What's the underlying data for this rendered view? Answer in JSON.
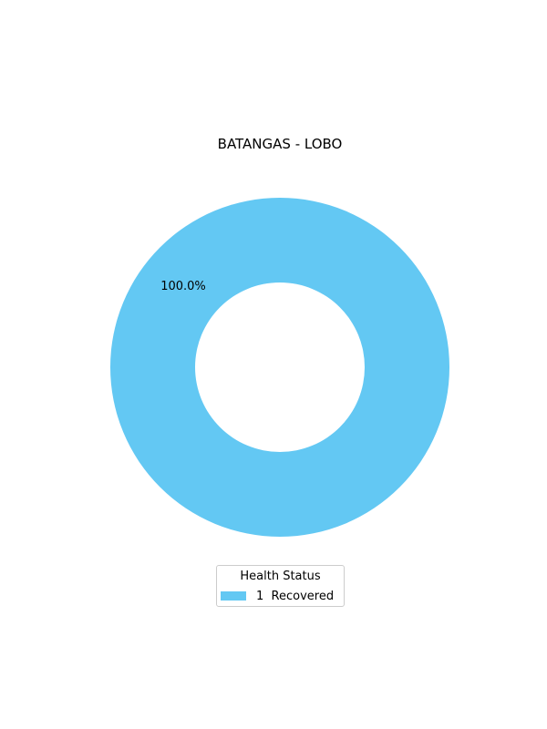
{
  "chart_data": {
    "type": "pie",
    "title": "BATANGAS - LOBO",
    "slices": [
      {
        "label": "1  Recovered",
        "value": 1,
        "percent_label": "100.0%",
        "color": "#63c8f3"
      }
    ],
    "donut": true,
    "legend": {
      "title": "Health Status",
      "placement": "bottom-center"
    }
  }
}
